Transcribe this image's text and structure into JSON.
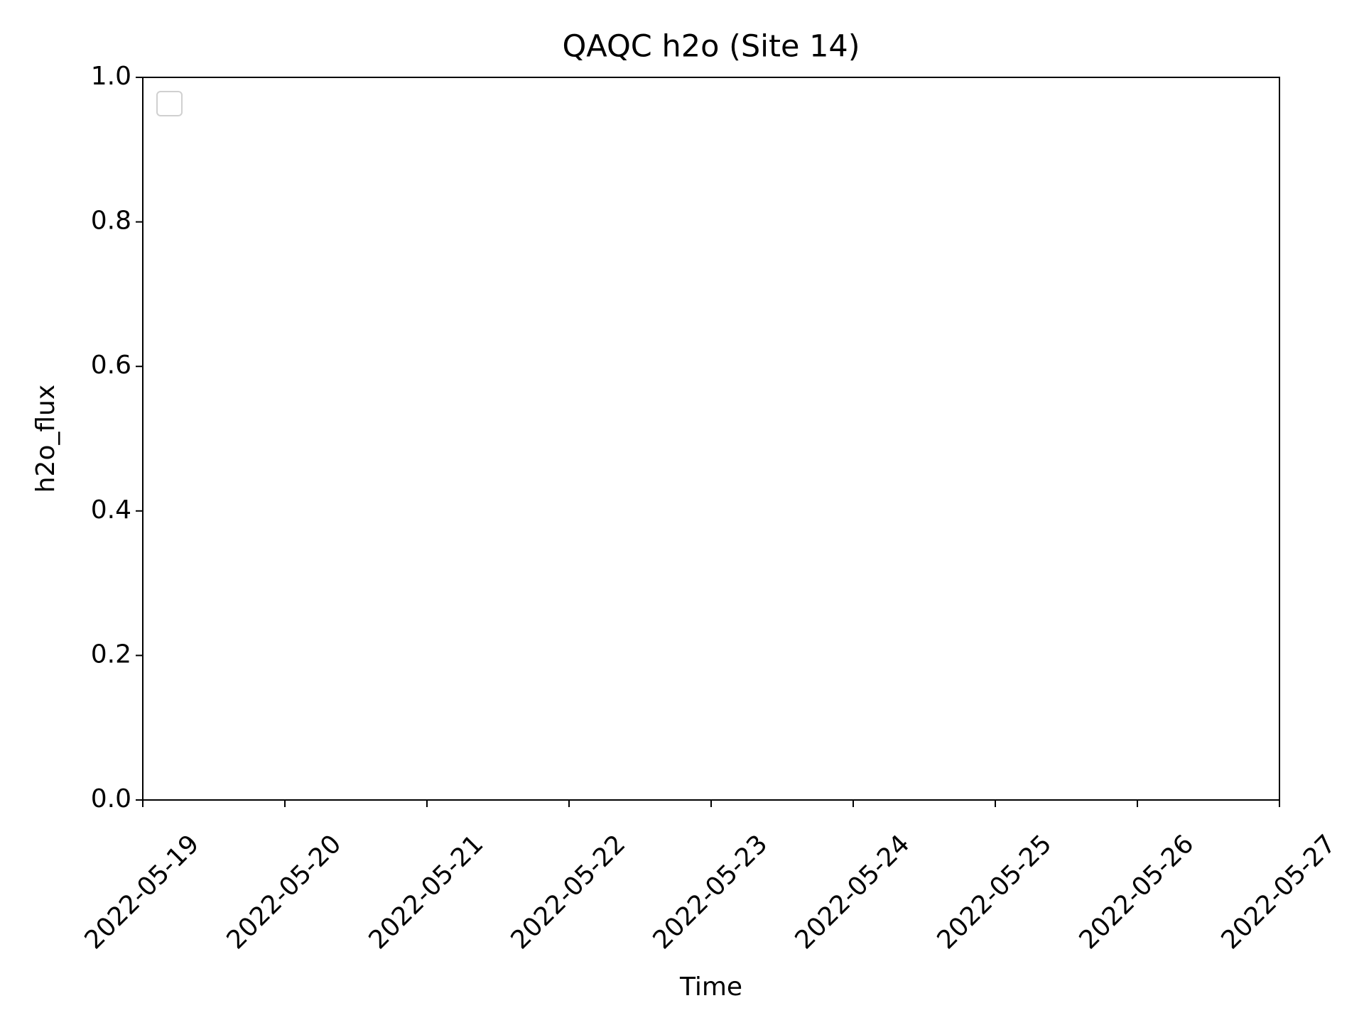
{
  "chart_data": {
    "type": "line",
    "title": "QAQC h2o (Site 14)",
    "xlabel": "Time",
    "ylabel": "h2o_flux",
    "x": [],
    "series": [],
    "xlim": [
      "2022-05-19",
      "2022-05-27"
    ],
    "xticks": [
      "2022-05-19",
      "2022-05-20",
      "2022-05-21",
      "2022-05-22",
      "2022-05-23",
      "2022-05-24",
      "2022-05-25",
      "2022-05-26",
      "2022-05-27"
    ],
    "ylim": [
      0,
      1
    ],
    "yticks": [
      {
        "value": 0,
        "label": "0.0"
      },
      0.2,
      0.4,
      0.6,
      0.8,
      {
        "value": 1,
        "label": "1.0"
      }
    ],
    "legend": "upper left"
  }
}
